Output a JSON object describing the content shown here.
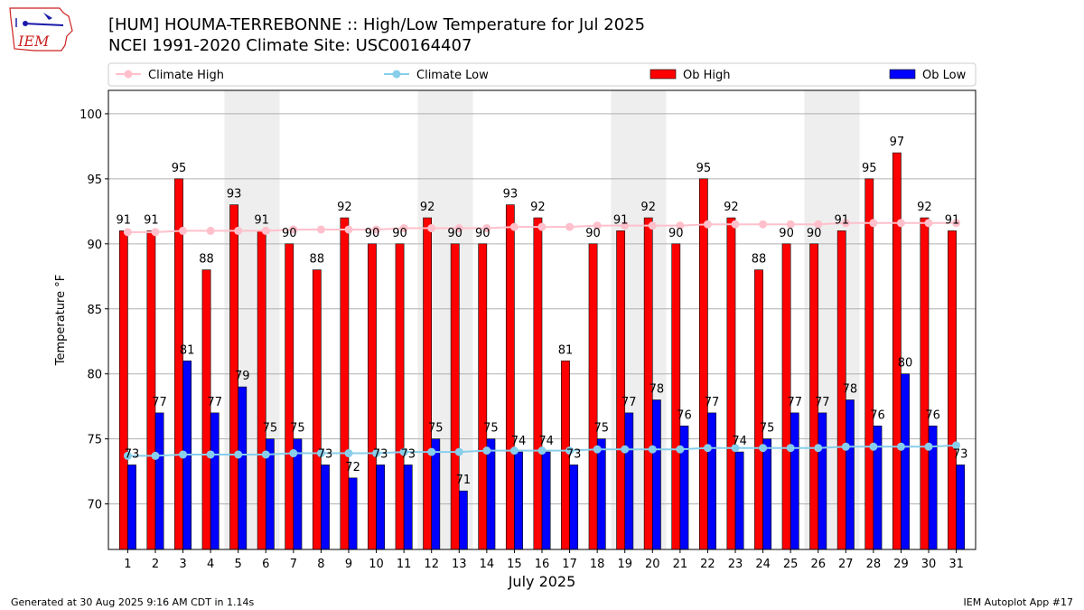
{
  "header": {
    "title_line1": "[HUM] HOUMA-TERREBONNE :: High/Low Temperature for Jul 2025",
    "title_line2": "NCEI 1991-2020 Climate Site: USC00164407",
    "logo_text": "IEM"
  },
  "footer": {
    "left": "Generated at 30 Aug 2025 9:16 AM CDT in 1.14s",
    "right": "IEM Autoplot App #17"
  },
  "colors": {
    "ob_high": "#ff0000",
    "ob_low": "#0000ff",
    "climate_high": "#ffc0cb",
    "climate_low": "#87ceeb",
    "weekend_shade": "#eeeeee",
    "logo_red": "#cc2222",
    "logo_blue": "#1a1aaa"
  },
  "chart_data": {
    "type": "bar",
    "xlabel": "July 2025",
    "ylabel": "Temperature °F",
    "ylim": [
      66.5,
      101.8
    ],
    "yticks": [
      70,
      75,
      80,
      85,
      90,
      95,
      100
    ],
    "grid": "horizontal",
    "legend_position": "top",
    "shaded_weekend_days": [
      [
        5,
        6
      ],
      [
        12,
        13
      ],
      [
        19,
        20
      ],
      [
        26,
        27
      ]
    ],
    "days": [
      1,
      2,
      3,
      4,
      5,
      6,
      7,
      8,
      9,
      10,
      11,
      12,
      13,
      14,
      15,
      16,
      17,
      18,
      19,
      20,
      21,
      22,
      23,
      24,
      25,
      26,
      27,
      28,
      29,
      30,
      31
    ],
    "series": [
      {
        "name": "Climate High",
        "kind": "line",
        "values": [
          90.9,
          90.9,
          91.0,
          91.0,
          91.0,
          91.0,
          91.1,
          91.1,
          91.1,
          91.1,
          91.2,
          91.2,
          91.2,
          91.2,
          91.3,
          91.3,
          91.3,
          91.4,
          91.4,
          91.4,
          91.4,
          91.5,
          91.5,
          91.5,
          91.5,
          91.5,
          91.6,
          91.6,
          91.6,
          91.6,
          91.6
        ]
      },
      {
        "name": "Climate Low",
        "kind": "line",
        "values": [
          73.7,
          73.7,
          73.8,
          73.8,
          73.8,
          73.8,
          73.9,
          73.9,
          73.9,
          73.9,
          74.0,
          74.0,
          74.0,
          74.1,
          74.1,
          74.1,
          74.1,
          74.2,
          74.2,
          74.2,
          74.2,
          74.3,
          74.3,
          74.3,
          74.3,
          74.3,
          74.4,
          74.4,
          74.4,
          74.4,
          74.5
        ]
      },
      {
        "name": "Ob High",
        "kind": "bar",
        "values": [
          91,
          91,
          95,
          88,
          93,
          91,
          90,
          88,
          92,
          90,
          90,
          92,
          90,
          90,
          93,
          92,
          81,
          90,
          91,
          92,
          90,
          95,
          92,
          88,
          90,
          90,
          91,
          95,
          97,
          92,
          91
        ]
      },
      {
        "name": "Ob Low",
        "kind": "bar",
        "values": [
          73,
          77,
          81,
          77,
          79,
          75,
          75,
          73,
          72,
          73,
          73,
          75,
          71,
          75,
          74,
          74,
          73,
          75,
          77,
          78,
          76,
          77,
          74,
          75,
          77,
          77,
          78,
          76,
          80,
          76,
          73
        ]
      }
    ]
  }
}
